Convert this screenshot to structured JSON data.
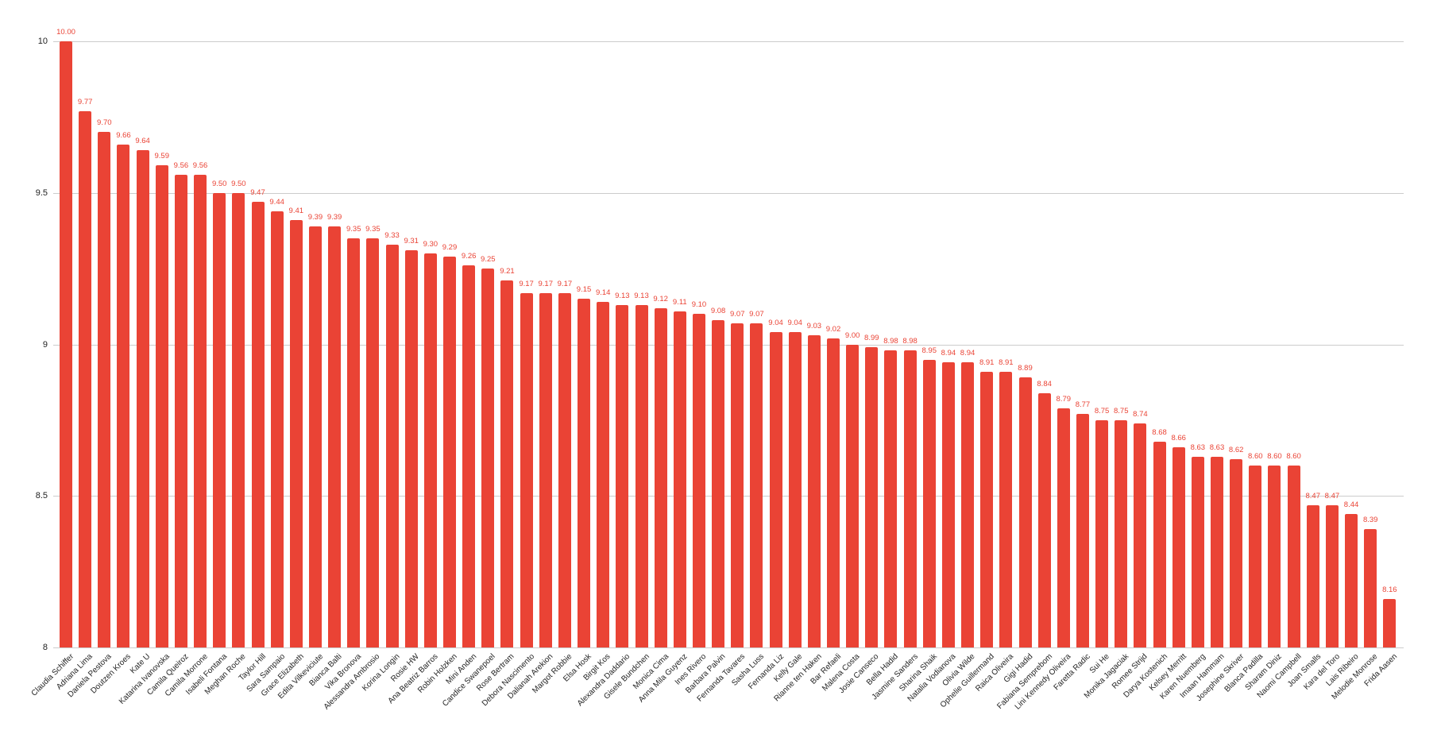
{
  "chart_data": {
    "type": "bar",
    "title": "",
    "xlabel": "",
    "ylabel": "",
    "ylim": [
      8,
      10
    ],
    "yticks": [
      8,
      8.5,
      9,
      9.5,
      10
    ],
    "ytick_labels": [
      "8",
      "8.5",
      "9",
      "9.5",
      "10"
    ],
    "grid": true,
    "legend": null,
    "bar_color": "#ea4335",
    "categories": [
      "Claudia Schiffer",
      "Adriana Lima",
      "Daniela Pestova",
      "Doutzen Kroes",
      "Kate U",
      "Katarina Ivanovska",
      "Camila Queiroz",
      "Camila Morrone",
      "Isabeli Fontana",
      "Meghan Roche",
      "Taylor Hill",
      "Sara Sampaio",
      "Grace Elizabeth",
      "Edita Vilkeviciute",
      "Bianca Balti",
      "Vika Bronova",
      "Alessandra Ambrosio",
      "Korina Longin",
      "Rosie HW",
      "Ana Beatriz Barros",
      "Robin Holzken",
      "Mini Anden",
      "Candice Swanepoel",
      "Rose Bertram",
      "Debora Nascimento",
      "Dalianah Arekion",
      "Margot Robbie",
      "Elsa Hosk",
      "Birgit Kos",
      "Alexandra Daddario",
      "Gisele Bundchen",
      "Monica Cima",
      "Anna Mila Guyenz",
      "Ines Rivero",
      "Barbara Palvin",
      "Fernanda Tavares",
      "Sasha Luss",
      "Fernanda Liz",
      "Kelly Gale",
      "Rianne ten Haken",
      "Bar Refaeli",
      "Malena Costa",
      "Josie Canseco",
      "Bella Hadid",
      "Jasmine Sanders",
      "Sharina Shaik",
      "Natalia Vodianova",
      "Olivia Wilde",
      "Ophelie Guillermand",
      "Raica Oliveira",
      "Gigi Hadid",
      "Fabiana Semprebom",
      "Lini Kennedy Oliveira",
      "Faretta Radic",
      "Sui He",
      "Monika Jagaciak",
      "Romee Strijd",
      "Darya Kostenich",
      "Kelsey Merritt",
      "Karen Nuemberg",
      "Imaan Hammam",
      "Josephine Skriver",
      "Blanca Padilla",
      "Sharam Diniz",
      "Naomi Campbell",
      "Joan Smalls",
      "Kara del Toro",
      "Lais Ribeiro",
      "Melodie Monrose",
      "Frida Aasen"
    ],
    "values": [
      10.0,
      9.77,
      9.7,
      9.66,
      9.64,
      9.59,
      9.56,
      9.56,
      9.5,
      9.5,
      9.47,
      9.44,
      9.41,
      9.39,
      9.39,
      9.35,
      9.35,
      9.33,
      9.31,
      9.3,
      9.29,
      9.26,
      9.25,
      9.21,
      9.17,
      9.17,
      9.17,
      9.15,
      9.14,
      9.13,
      9.13,
      9.12,
      9.11,
      9.1,
      9.08,
      9.07,
      9.07,
      9.04,
      9.04,
      9.03,
      9.02,
      9.0,
      8.99,
      8.98,
      8.98,
      8.95,
      8.94,
      8.94,
      8.91,
      8.91,
      8.89,
      8.84,
      8.79,
      8.77,
      8.75,
      8.75,
      8.74,
      8.68,
      8.66,
      8.63,
      8.63,
      8.62,
      8.6,
      8.6,
      8.6,
      8.47,
      8.47,
      8.44,
      8.39,
      8.16
    ],
    "data_labels": true,
    "data_label_format": "0.00"
  }
}
